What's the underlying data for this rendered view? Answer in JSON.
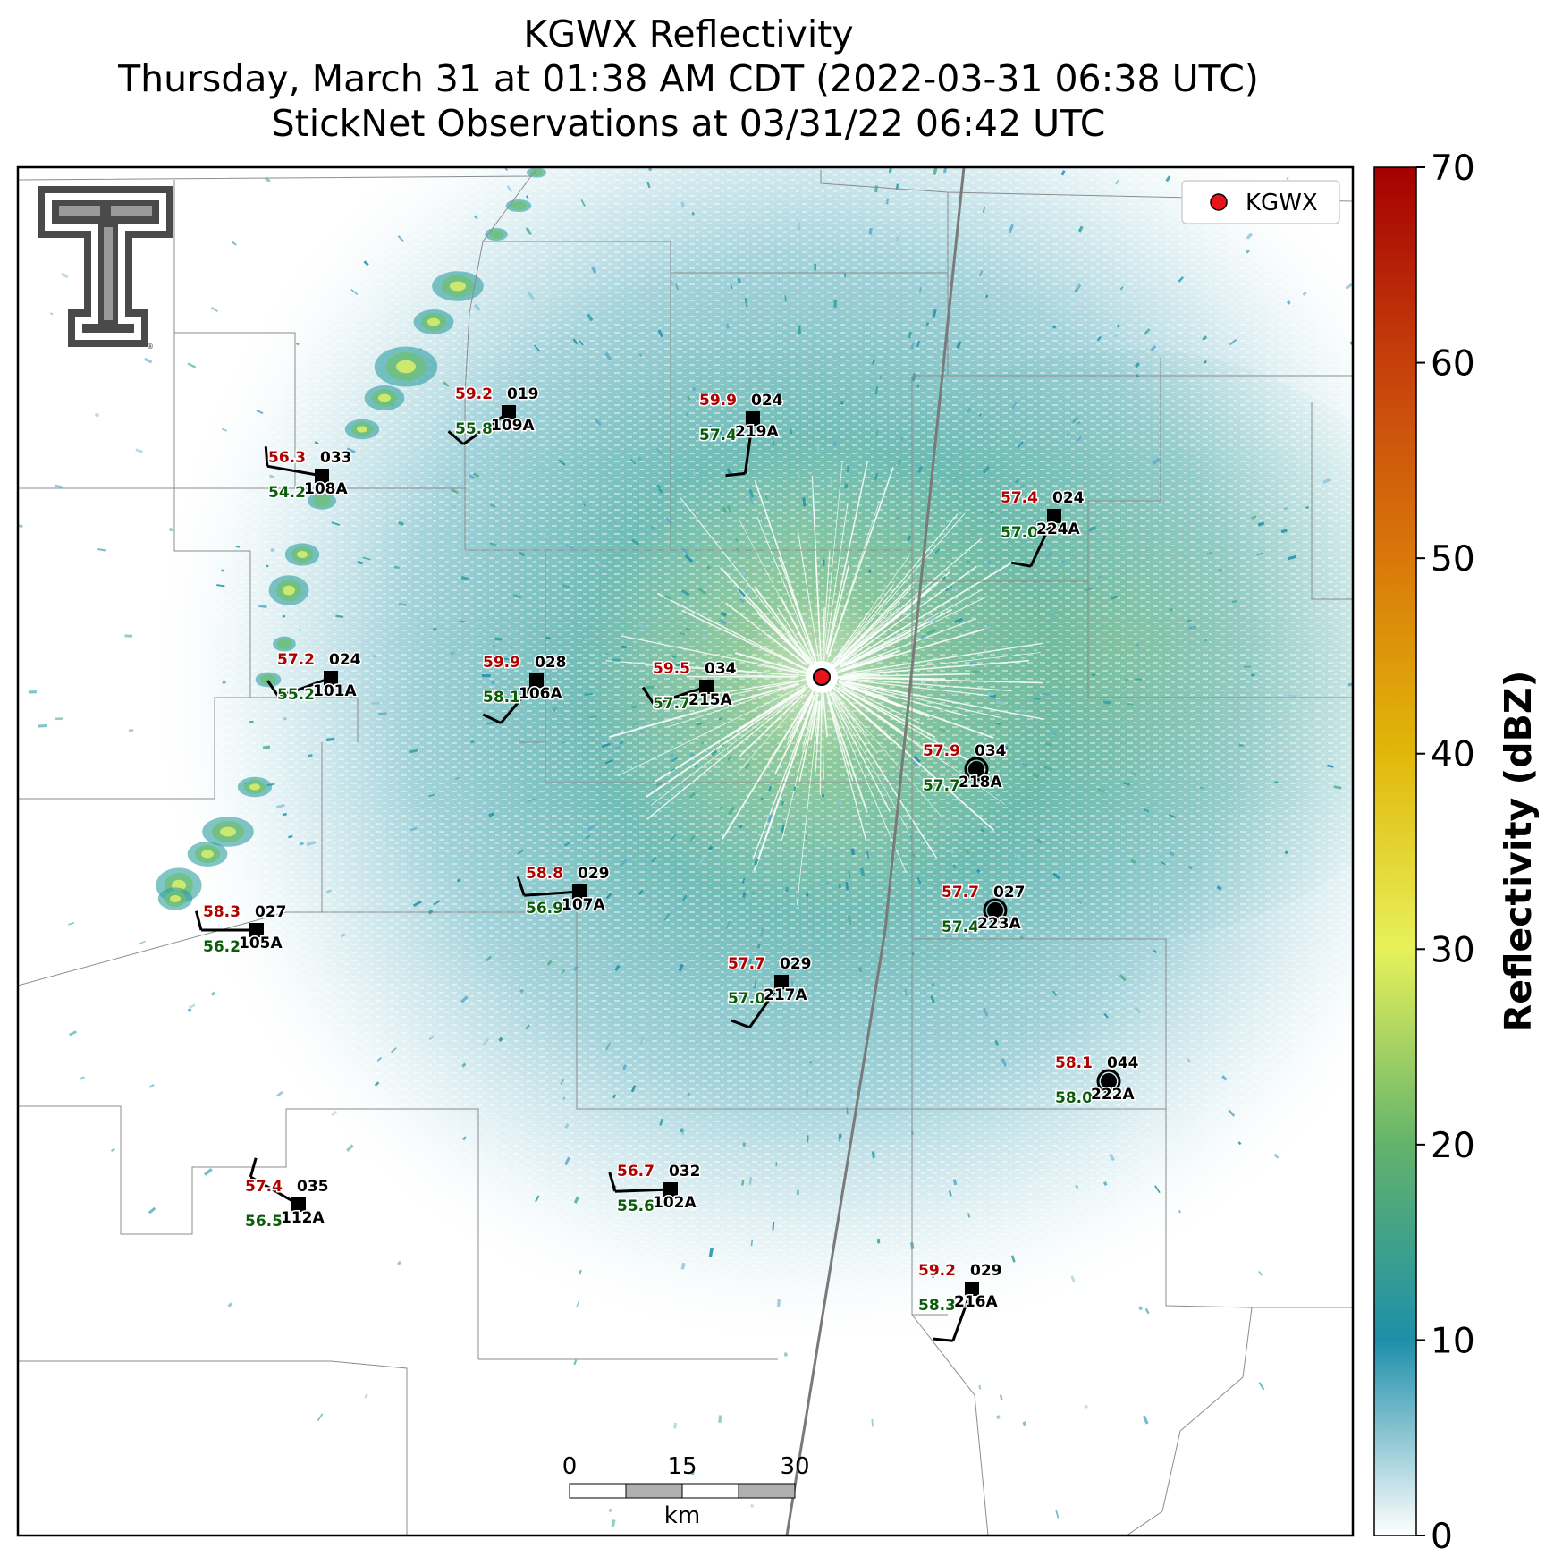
{
  "title": {
    "line1": "KGWX Reflectivity",
    "line2": "Thursday, March 31 at 01:38 AM CDT (2022-03-31 06:38 UTC)",
    "line3": "StickNet Observations at 03/31/22 06:42 UTC"
  },
  "legend": {
    "label": "KGWX",
    "marker_color": "#e8141b"
  },
  "colorbar": {
    "label": "Reflectivity (dBZ)",
    "ticks": [
      "0",
      "10",
      "20",
      "30",
      "40",
      "50",
      "60",
      "70"
    ],
    "stops": [
      "#ffffff",
      "#1d8fa9",
      "#63b36b",
      "#e7f15a",
      "#e1b80a",
      "#d9780a",
      "#c6400c",
      "#a50000"
    ]
  },
  "scalebar": {
    "ticks": [
      "0",
      "15",
      "30"
    ],
    "unit": "km"
  },
  "logo": {
    "icon": "texas-tech-double-t-logo"
  },
  "stations": [
    {
      "id": "108A",
      "temp": "56.3",
      "dew": "54.2",
      "dir": "033",
      "symbol": "square",
      "wind_deg": 280
    },
    {
      "id": "109A",
      "temp": "59.2",
      "dew": "55.8",
      "dir": "019",
      "symbol": "square",
      "wind_deg": 235
    },
    {
      "id": "219A",
      "temp": "59.9",
      "dew": "57.4",
      "dir": "024",
      "symbol": "square",
      "wind_deg": 188
    },
    {
      "id": "224A",
      "temp": "57.4",
      "dew": "57.0",
      "dir": "024",
      "symbol": "square",
      "wind_deg": 205
    },
    {
      "id": "101A",
      "temp": "57.2",
      "dew": "55.2",
      "dir": "024",
      "symbol": "square",
      "wind_deg": 250
    },
    {
      "id": "106A",
      "temp": "59.9",
      "dew": "58.1",
      "dir": "028",
      "symbol": "square",
      "wind_deg": 220
    },
    {
      "id": "215A",
      "temp": "59.5",
      "dew": "57.7",
      "dir": "034",
      "symbol": "square",
      "wind_deg": 252
    },
    {
      "id": "218A",
      "temp": "57.9",
      "dew": "57.7",
      "dir": "034",
      "symbol": "circle",
      "wind_deg": null
    },
    {
      "id": "107A",
      "temp": "58.8",
      "dew": "56.9",
      "dir": "029",
      "symbol": "square",
      "wind_deg": 266
    },
    {
      "id": "223A",
      "temp": "57.7",
      "dew": "57.4",
      "dir": "027",
      "symbol": "circle",
      "wind_deg": null
    },
    {
      "id": "105A",
      "temp": "58.3",
      "dew": "56.2",
      "dir": "027",
      "symbol": "square",
      "wind_deg": 270
    },
    {
      "id": "217A",
      "temp": "57.7",
      "dew": "57.0",
      "dir": "029",
      "symbol": "square",
      "wind_deg": 215
    },
    {
      "id": "222A",
      "temp": "58.1",
      "dew": "58.0",
      "dir": "044",
      "symbol": "circle",
      "wind_deg": null
    },
    {
      "id": "112A",
      "temp": "57.4",
      "dew": "56.5",
      "dir": "035",
      "symbol": "square",
      "wind_deg": 300
    },
    {
      "id": "102A",
      "temp": "56.7",
      "dew": "55.6",
      "dir": "032",
      "symbol": "square",
      "wind_deg": 268
    },
    {
      "id": "216A",
      "temp": "59.2",
      "dew": "58.3",
      "dir": "029",
      "symbol": "square",
      "wind_deg": 200
    }
  ]
}
